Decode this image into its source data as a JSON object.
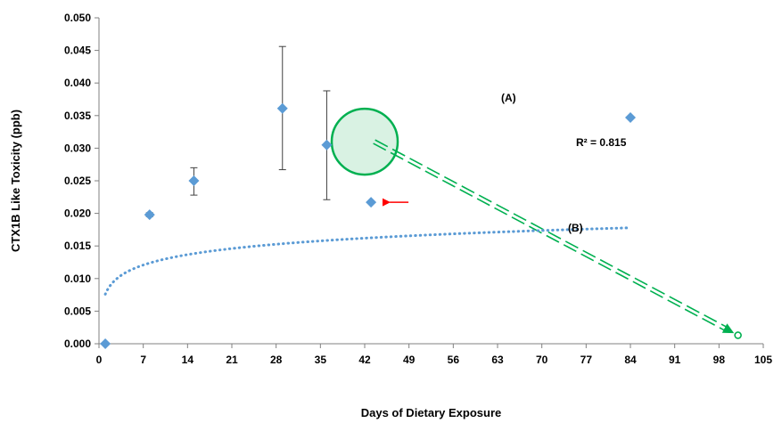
{
  "chart_data": {
    "type": "scatter",
    "title": "",
    "xlabel": "Days of Dietary Exposure",
    "ylabel": "CTX1B Like Toxicity (ppb)",
    "xlim": [
      0,
      105
    ],
    "ylim": [
      0,
      0.05
    ],
    "x_ticks": [
      "0",
      "7",
      "14",
      "21",
      "28",
      "35",
      "42",
      "49",
      "56",
      "63",
      "70",
      "77",
      "84",
      "91",
      "98",
      "105"
    ],
    "y_ticks": [
      "0.000",
      "0.005",
      "0.010",
      "0.015",
      "0.020",
      "0.025",
      "0.030",
      "0.035",
      "0.040",
      "0.045",
      "0.050"
    ],
    "grid": false,
    "colors": {
      "points": "#5b9bd5",
      "trend": "#5b9bd5",
      "annotation": "#00b050",
      "circle_fill": "#d9f2e3",
      "arrow": "#ff0000",
      "error_bars": "#404040"
    },
    "series": [
      {
        "points": [
          {
            "x": 1,
            "y": 0.0
          },
          {
            "x": 8,
            "y": 0.0198,
            "err_low": 0.0195,
            "err_high": 0.0201
          },
          {
            "x": 15,
            "y": 0.025,
            "err_low": 0.0228,
            "err_high": 0.027
          },
          {
            "x": 29,
            "y": 0.0361,
            "err_low": 0.0267,
            "err_high": 0.0456
          },
          {
            "x": 36,
            "y": 0.0305,
            "err_low": 0.0221,
            "err_high": 0.0388
          },
          {
            "x": 84,
            "y": 0.0347
          }
        ]
      }
    ],
    "outlier_point": {
      "x": 43,
      "y": 0.0217
    },
    "trendline": {
      "type": "logarithmic",
      "a": 0.0023,
      "b": 0.0076,
      "x_from": 1,
      "x_to": 84
    },
    "r_squared_label": "R² = 0.815",
    "annotations": {
      "label_a": "(A)",
      "label_b": "(B)",
      "circle_center": {
        "x": 42,
        "y": 0.031
      },
      "line_b_from": {
        "x": 43.5,
        "y": 0.031
      },
      "line_b_to": {
        "x": 101,
        "y": 0.0013
      }
    }
  }
}
